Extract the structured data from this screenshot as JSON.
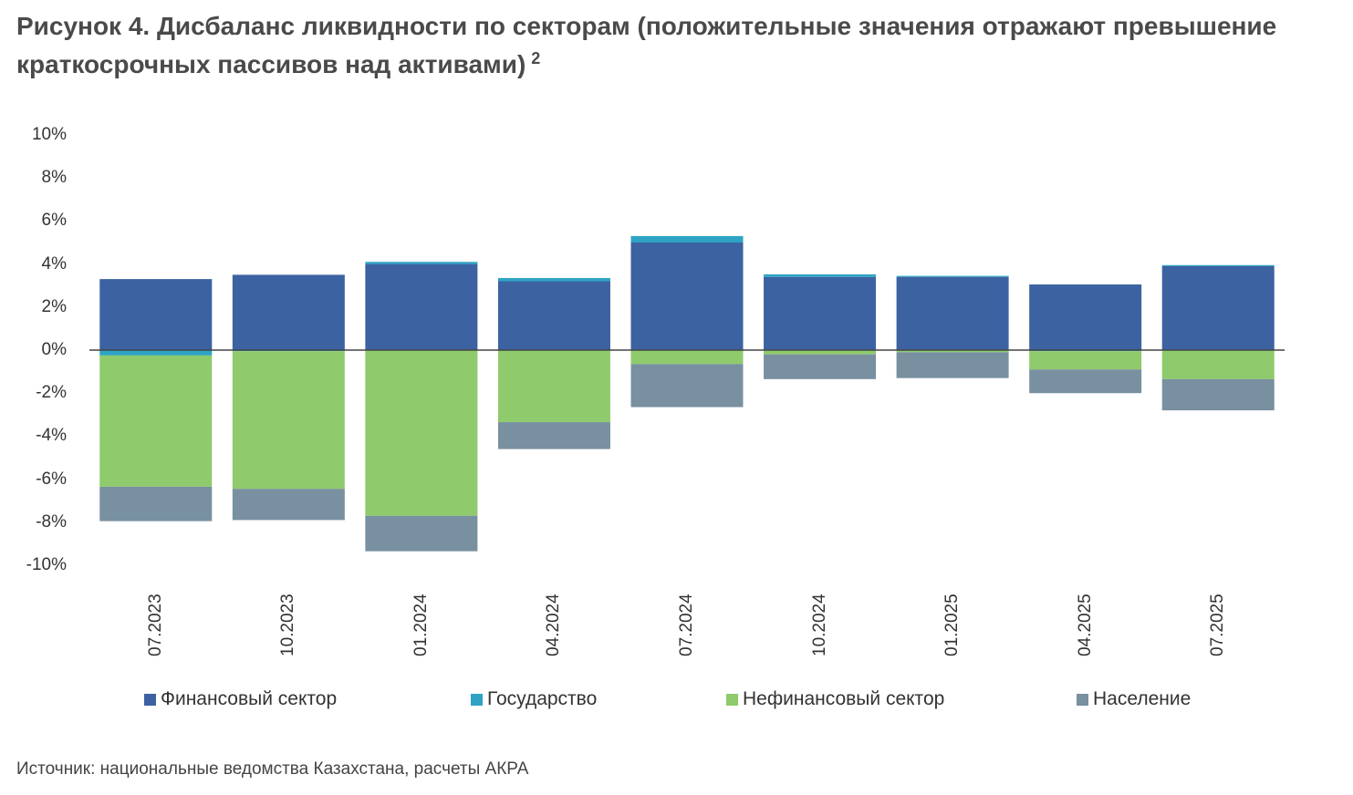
{
  "title": "Рисунок 4. Дисбаланс ликвидности по секторам (положительные значения отражают превышение краткосрочных  пассивов над активами)",
  "title_footnote": "2",
  "source": "Источник: национальные ведомства Казахстана, расчеты АКРА",
  "chart_data": {
    "type": "bar",
    "stacked": true,
    "categories": [
      "07.2023",
      "10.2023",
      "01.2024",
      "04.2024",
      "07.2024",
      "10.2024",
      "01.2025",
      "04.2025",
      "07.2025"
    ],
    "series": [
      {
        "name": "Финансовый сектор",
        "color": "#3c62a1",
        "values": [
          3.3,
          3.5,
          4.0,
          3.2,
          5.0,
          3.4,
          3.4,
          3.05,
          3.9
        ]
      },
      {
        "name": "Государство",
        "color": "#2fa3c4",
        "values": [
          -0.25,
          -0.05,
          0.1,
          0.15,
          0.3,
          0.12,
          0.05,
          -0.05,
          0.05
        ]
      },
      {
        "name": "Нефинансовый сектор",
        "color": "#8fca6c",
        "values": [
          -6.1,
          -6.4,
          -7.7,
          -3.35,
          -0.65,
          -0.2,
          -0.1,
          -0.85,
          -1.35
        ]
      },
      {
        "name": "Население",
        "color": "#7890a0",
        "values": [
          -1.6,
          -1.45,
          -1.65,
          -1.25,
          -2.0,
          -1.15,
          -1.2,
          -1.1,
          -1.45
        ]
      }
    ],
    "yticks": [
      "10%",
      "8%",
      "6%",
      "4%",
      "2%",
      "0%",
      "-2%",
      "-4%",
      "-6%",
      "-8%",
      "-10%"
    ],
    "ylim": [
      -10,
      10
    ],
    "xlabel": "",
    "ylabel": "",
    "grid": false,
    "legend_position": "bottom"
  }
}
